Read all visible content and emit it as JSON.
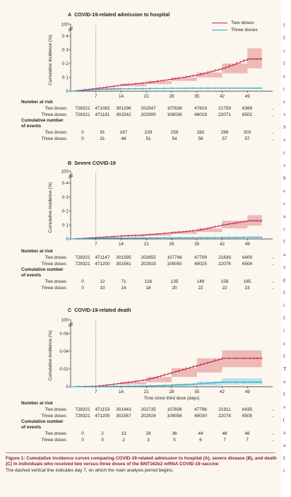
{
  "legend": [
    {
      "label": "Two doses",
      "color": "#c4234f",
      "band": "#e8a5a5"
    },
    {
      "label": "Three doses",
      "color": "#29a8c6",
      "band": "#a9dbe8"
    }
  ],
  "common": {
    "x_ticks": [
      7,
      14,
      21,
      28,
      35,
      42,
      49
    ],
    "risk_header": "Number at risk",
    "events_header": [
      "Cumulative number",
      "of events"
    ],
    "row_labels": [
      "Two doses",
      "Three doses"
    ],
    "risk_cols": [
      "0",
      "7",
      "14",
      "21",
      "28",
      "35",
      "42",
      "49",
      ".."
    ]
  },
  "chart_data": [
    {
      "letter": "A",
      "type": "line",
      "title": "COVID-19-related admission to hospital",
      "ylabel": "Cumulative incidence (%)",
      "xlabel": "",
      "ylim": [
        0,
        0.45
      ],
      "y_ticks": [
        0,
        0.1,
        0.2,
        0.3,
        0.4
      ],
      "y_break_label": "100",
      "xlim": [
        0,
        56
      ],
      "dashed_x": 7,
      "series": [
        {
          "name": "Two doses",
          "x": [
            0,
            7,
            14,
            21,
            28,
            35,
            42,
            49,
            53
          ],
          "y": [
            0,
            0.02,
            0.045,
            0.062,
            0.088,
            0.118,
            0.165,
            0.233,
            0.233
          ],
          "lower": [
            0,
            0.015,
            0.036,
            0.052,
            0.075,
            0.1,
            0.13,
            0.165,
            0.165
          ],
          "upper": [
            0,
            0.025,
            0.054,
            0.072,
            0.1,
            0.135,
            0.2,
            0.31,
            0.31
          ]
        },
        {
          "name": "Three doses",
          "x": [
            0,
            7,
            14,
            21,
            28,
            35,
            42,
            49,
            53
          ],
          "y": [
            0,
            0.012,
            0.017,
            0.019,
            0.021,
            0.022,
            0.022,
            0.022,
            0.022
          ],
          "lower": [
            0,
            0.009,
            0.014,
            0.016,
            0.018,
            0.019,
            0.019,
            0.019,
            0.019
          ],
          "upper": [
            0,
            0.015,
            0.02,
            0.022,
            0.024,
            0.025,
            0.025,
            0.025,
            0.025
          ]
        }
      ],
      "risk": {
        "at_risk": [
          [
            "728321",
            "471082",
            "301296",
            "202547",
            "107638",
            "47619",
            "21759",
            "6368",
            ".."
          ],
          [
            "728321",
            "471181",
            "301542",
            "202900",
            "108036",
            "48018",
            "22071",
            "6502",
            ".."
          ]
        ],
        "events": [
          [
            "0",
            "91",
            "167",
            "229",
            "259",
            "282",
            "299",
            "303",
            ".."
          ],
          [
            "0",
            "31",
            "46",
            "51",
            "54",
            "56",
            "57",
            "57",
            ".."
          ]
        ]
      }
    },
    {
      "letter": "B",
      "type": "line",
      "title": "Severe COVID-19",
      "ylabel": "Cumulative incidence (%)",
      "xlabel": "",
      "ylim": [
        0,
        0.45
      ],
      "y_ticks": [
        0,
        0.1,
        0.2,
        0.3,
        0.4
      ],
      "y_break_label": "100",
      "xlim": [
        0,
        56
      ],
      "dashed_x": 7,
      "series": [
        {
          "name": "Two doses",
          "x": [
            0,
            7,
            14,
            21,
            28,
            35,
            42,
            49,
            53
          ],
          "y": [
            0,
            0.01,
            0.022,
            0.03,
            0.045,
            0.062,
            0.1,
            0.13,
            0.13
          ],
          "lower": [
            0,
            0.007,
            0.017,
            0.024,
            0.036,
            0.05,
            0.075,
            0.095,
            0.095
          ],
          "upper": [
            0,
            0.013,
            0.027,
            0.036,
            0.054,
            0.075,
            0.13,
            0.17,
            0.17
          ]
        },
        {
          "name": "Three doses",
          "x": [
            0,
            7,
            14,
            21,
            28,
            35,
            42,
            49,
            53
          ],
          "y": [
            0,
            0.004,
            0.006,
            0.007,
            0.008,
            0.009,
            0.01,
            0.012,
            0.012
          ],
          "lower": [
            0,
            0.002,
            0.004,
            0.005,
            0.006,
            0.006,
            0.007,
            0.008,
            0.008
          ],
          "upper": [
            0,
            0.006,
            0.008,
            0.009,
            0.01,
            0.012,
            0.014,
            0.017,
            0.017
          ]
        }
      ],
      "risk": {
        "at_risk": [
          [
            "728321",
            "471147",
            "301395",
            "202655",
            "107748",
            "47709",
            "21839",
            "6400",
            ".."
          ],
          [
            "728321",
            "471200",
            "301561",
            "202919",
            "108050",
            "48025",
            "22076",
            "6504",
            ".."
          ]
        ],
        "events": [
          [
            "0",
            "12",
            "71",
            "116",
            "135",
            "149",
            "158",
            "165",
            ".."
          ],
          [
            "0",
            "10",
            "14",
            "18",
            "20",
            "22",
            "22",
            "23",
            ".."
          ]
        ]
      }
    },
    {
      "letter": "C",
      "type": "line",
      "title": "COVID-19-related death",
      "ylabel": "Cumulative incidence (%)",
      "xlabel": "Time since third dose (days)",
      "ylim": [
        0,
        0.07
      ],
      "y_ticks": [
        0,
        0.02,
        0.04,
        0.06
      ],
      "y_break_label": "100",
      "xlim": [
        0,
        56
      ],
      "dashed_x": 7,
      "series": [
        {
          "name": "Two doses",
          "x": [
            0,
            7,
            14,
            21,
            28,
            35,
            42,
            49,
            53
          ],
          "y": [
            0,
            0.0006,
            0.004,
            0.008,
            0.016,
            0.024,
            0.032,
            0.032,
            0.032
          ],
          "lower": [
            0,
            0.0003,
            0.0025,
            0.005,
            0.011,
            0.016,
            0.022,
            0.022,
            0.022
          ],
          "upper": [
            0,
            0.001,
            0.0055,
            0.011,
            0.021,
            0.032,
            0.041,
            0.041,
            0.041
          ]
        },
        {
          "name": "Three doses",
          "x": [
            0,
            7,
            14,
            21,
            28,
            35,
            42,
            49,
            53
          ],
          "y": [
            0,
            0.0002,
            0.0005,
            0.0008,
            0.0018,
            0.0032,
            0.0052,
            0.0052,
            0.0052
          ],
          "lower": [
            0,
            0,
            0.0002,
            0.0003,
            0.0008,
            0.0016,
            0.0025,
            0.0025,
            0.0025
          ],
          "upper": [
            0,
            0.0005,
            0.001,
            0.0015,
            0.003,
            0.006,
            0.0095,
            0.0095,
            0.0095
          ]
        }
      ],
      "risk": {
        "at_risk": [
          [
            "728321",
            "471153",
            "301443",
            "202735",
            "107836",
            "47796",
            "21911",
            "6435",
            ".."
          ],
          [
            "728321",
            "471205",
            "301567",
            "202924",
            "108056",
            "48030",
            "22078",
            "6505",
            ".."
          ]
        ],
        "events": [
          [
            "0",
            "2",
            "13",
            "29",
            "36",
            "44",
            "46",
            "46",
            ".."
          ],
          [
            "0",
            "0",
            "2",
            "3",
            "5",
            "6",
            "7",
            "7",
            ".."
          ]
        ]
      }
    }
  ],
  "caption": {
    "label": "Figure 1:",
    "title": "Cumulative incidence curves comparing COVID-19-related admission to hospital (A), severe disease (B), and death (C) in individuals who received two versus three doses of the BNT162b2 mRNA COVID-19 vaccine",
    "note": "The dashed vertical line indicates day 7, on which the main analysis period begins."
  },
  "side_column": [
    "f",
    "f",
    "c",
    "f",
    "s",
    "t",
    "s",
    "v",
    "S",
    "v",
    "c",
    "v",
    "h",
    "s",
    "c",
    "a",
    "c",
    "f",
    "a",
    "v",
    "p",
    "I",
    "i",
    "I",
    "i",
    "s",
    "I",
    "T",
    "o",
    "I",
    "v",
    "(",
    "a",
    "a",
    "I",
    "l"
  ]
}
